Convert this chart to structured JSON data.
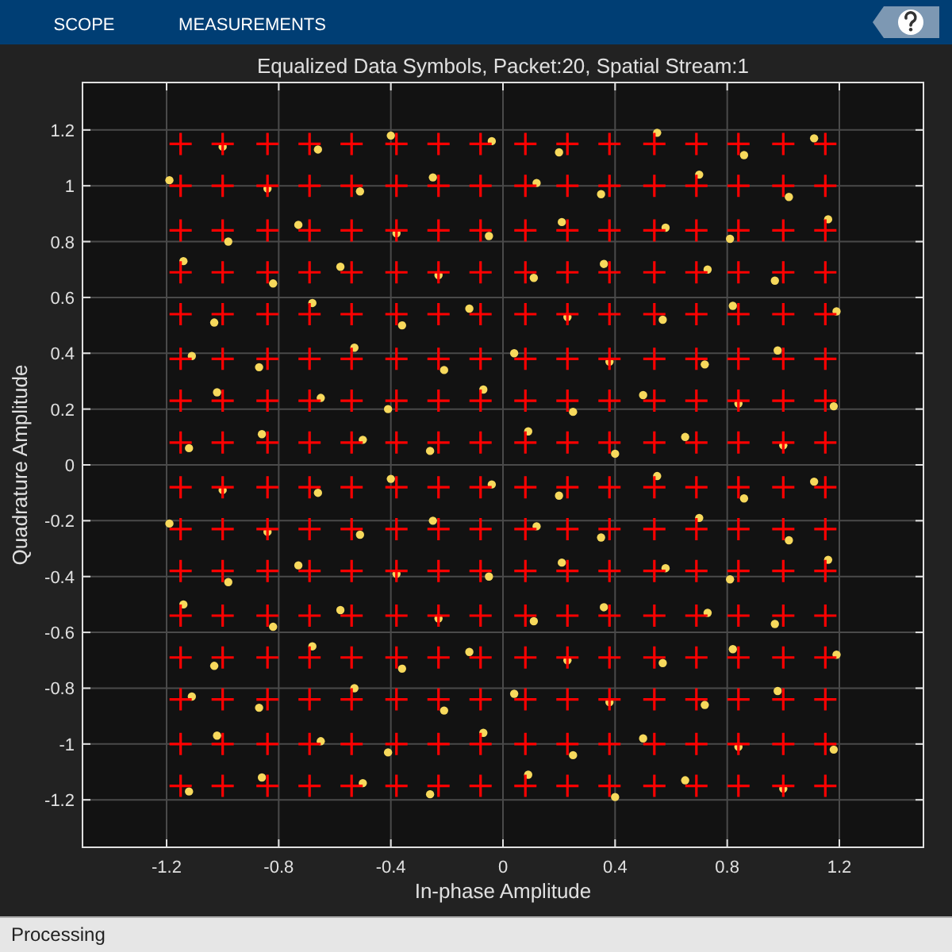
{
  "chart_data": {
    "type": "scatter",
    "title": "Equalized Data Symbols, Packet:20, Spatial Stream:1",
    "xlabel": "In-phase Amplitude",
    "ylabel": "Quadrature Amplitude",
    "xlim": [
      -1.5,
      1.5
    ],
    "ylim": [
      -1.37,
      1.37
    ],
    "xticks": [
      -1.2,
      -0.8,
      -0.4,
      0,
      0.4,
      0.8,
      1.2
    ],
    "yticks": [
      -1.2,
      -1,
      -0.8,
      -0.6,
      -0.4,
      -0.2,
      0,
      0.2,
      0.4,
      0.6,
      0.8,
      1,
      1.2
    ],
    "grid": true,
    "annotations": [
      "SCOPE",
      "MEASUREMENTS",
      "Processing"
    ],
    "series": [
      {
        "color": "#f7d95c",
        "marker": "circle",
        "x": [
          -1.12,
          -0.86,
          -0.5,
          -0.26,
          0.09,
          0.4,
          0.65,
          1.0,
          -1.02,
          -0.65,
          -0.41,
          -0.07,
          0.25,
          0.5,
          0.84,
          1.18,
          -1.11,
          -0.87,
          -0.53,
          -0.21,
          0.04,
          0.38,
          0.72,
          0.98,
          -1.03,
          -0.68,
          -0.36,
          -0.12,
          0.23,
          0.57,
          0.82,
          1.19,
          -1.14,
          -0.82,
          -0.58,
          -0.23,
          0.11,
          0.36,
          0.73,
          0.97,
          -0.98,
          -0.73,
          -0.38,
          -0.05,
          0.21,
          0.58,
          0.81,
          1.16,
          -1.19,
          -0.84,
          -0.51,
          -0.25,
          0.12,
          0.35,
          0.7,
          1.02,
          -1.0,
          -0.66,
          -0.4,
          -0.04,
          0.2,
          0.55,
          0.86,
          1.11,
          -1.12,
          -0.86,
          -0.5,
          -0.26,
          0.09,
          0.4,
          0.65,
          1.0,
          -1.02,
          -0.65,
          -0.41,
          -0.07,
          0.25,
          0.5,
          0.84,
          1.18,
          -1.11,
          -0.87,
          -0.53,
          -0.21,
          0.04,
          0.38,
          0.72,
          0.98,
          -1.03,
          -0.68,
          -0.36,
          -0.12,
          0.23,
          0.57,
          0.82,
          1.19,
          -1.14,
          -0.82,
          -0.58,
          -0.23,
          0.11,
          0.36,
          0.73,
          0.97,
          -0.98,
          -0.73,
          -0.38,
          -0.05,
          0.21,
          0.58,
          0.81,
          1.16,
          -1.19,
          -0.84,
          -0.51,
          -0.25,
          0.12,
          0.35,
          0.7,
          1.02,
          -1.0,
          -0.66,
          -0.4,
          -0.04,
          0.2,
          0.55,
          0.86,
          1.11
        ],
        "values": [
          -1.17,
          -1.12,
          -1.14,
          -1.18,
          -1.11,
          -1.19,
          -1.13,
          -1.16,
          -0.97,
          -0.99,
          -1.03,
          -0.96,
          -1.04,
          -0.98,
          -1.01,
          -1.02,
          -0.83,
          -0.87,
          -0.8,
          -0.88,
          -0.82,
          -0.85,
          -0.86,
          -0.81,
          -0.72,
          -0.65,
          -0.73,
          -0.67,
          -0.7,
          -0.71,
          -0.66,
          -0.68,
          -0.5,
          -0.58,
          -0.52,
          -0.55,
          -0.56,
          -0.51,
          -0.53,
          -0.57,
          -0.42,
          -0.36,
          -0.39,
          -0.4,
          -0.35,
          -0.37,
          -0.41,
          -0.34,
          -0.21,
          -0.24,
          -0.25,
          -0.2,
          -0.22,
          -0.26,
          -0.19,
          -0.27,
          -0.09,
          -0.1,
          -0.05,
          -0.07,
          -0.11,
          -0.04,
          -0.12,
          -0.06,
          0.06,
          0.11,
          0.09,
          0.05,
          0.12,
          0.04,
          0.1,
          0.07,
          0.26,
          0.24,
          0.2,
          0.27,
          0.19,
          0.25,
          0.22,
          0.21,
          0.39,
          0.35,
          0.42,
          0.34,
          0.4,
          0.37,
          0.36,
          0.41,
          0.51,
          0.58,
          0.5,
          0.56,
          0.53,
          0.52,
          0.57,
          0.55,
          0.73,
          0.65,
          0.71,
          0.68,
          0.67,
          0.72,
          0.7,
          0.66,
          0.8,
          0.86,
          0.83,
          0.82,
          0.87,
          0.85,
          0.81,
          0.88,
          1.02,
          0.99,
          0.98,
          1.03,
          1.01,
          0.97,
          1.04,
          0.96,
          1.14,
          1.13,
          1.18,
          1.16,
          1.12,
          1.19,
          1.11,
          1.17
        ]
      },
      {
        "color": "#ff0000",
        "marker": "cross",
        "x": [
          -1.15,
          -1.0,
          -0.84,
          -0.69,
          -0.54,
          -0.38,
          -0.23,
          -0.08,
          0.08,
          0.23,
          0.38,
          0.54,
          0.69,
          0.84,
          1.0,
          1.15,
          -1.15,
          -1.0,
          -0.84,
          -0.69,
          -0.54,
          -0.38,
          -0.23,
          -0.08,
          0.08,
          0.23,
          0.38,
          0.54,
          0.69,
          0.84,
          1.0,
          1.15,
          -1.15,
          -1.0,
          -0.84,
          -0.69,
          -0.54,
          -0.38,
          -0.23,
          -0.08,
          0.08,
          0.23,
          0.38,
          0.54,
          0.69,
          0.84,
          1.0,
          1.15,
          -1.15,
          -1.0,
          -0.84,
          -0.69,
          -0.54,
          -0.38,
          -0.23,
          -0.08,
          0.08,
          0.23,
          0.38,
          0.54,
          0.69,
          0.84,
          1.0,
          1.15,
          -1.15,
          -1.0,
          -0.84,
          -0.69,
          -0.54,
          -0.38,
          -0.23,
          -0.08,
          0.08,
          0.23,
          0.38,
          0.54,
          0.69,
          0.84,
          1.0,
          1.15,
          -1.15,
          -1.0,
          -0.84,
          -0.69,
          -0.54,
          -0.38,
          -0.23,
          -0.08,
          0.08,
          0.23,
          0.38,
          0.54,
          0.69,
          0.84,
          1.0,
          1.15,
          -1.15,
          -1.0,
          -0.84,
          -0.69,
          -0.54,
          -0.38,
          -0.23,
          -0.08,
          0.08,
          0.23,
          0.38,
          0.54,
          0.69,
          0.84,
          1.0,
          1.15,
          -1.15,
          -1.0,
          -0.84,
          -0.69,
          -0.54,
          -0.38,
          -0.23,
          -0.08,
          0.08,
          0.23,
          0.38,
          0.54,
          0.69,
          0.84,
          1.0,
          1.15,
          -1.15,
          -1.0,
          -0.84,
          -0.69,
          -0.54,
          -0.38,
          -0.23,
          -0.08,
          0.08,
          0.23,
          0.38,
          0.54,
          0.69,
          0.84,
          1.0,
          1.15,
          -1.15,
          -1.0,
          -0.84,
          -0.69,
          -0.54,
          -0.38,
          -0.23,
          -0.08,
          0.08,
          0.23,
          0.38,
          0.54,
          0.69,
          0.84,
          1.0,
          1.15,
          -1.15,
          -1.0,
          -0.84,
          -0.69,
          -0.54,
          -0.38,
          -0.23,
          -0.08,
          0.08,
          0.23,
          0.38,
          0.54,
          0.69,
          0.84,
          1.0,
          1.15,
          -1.15,
          -1.0,
          -0.84,
          -0.69,
          -0.54,
          -0.38,
          -0.23,
          -0.08,
          0.08,
          0.23,
          0.38,
          0.54,
          0.69,
          0.84,
          1.0,
          1.15,
          -1.15,
          -1.0,
          -0.84,
          -0.69,
          -0.54,
          -0.38,
          -0.23,
          -0.08,
          0.08,
          0.23,
          0.38,
          0.54,
          0.69,
          0.84,
          1.0,
          1.15,
          -1.15,
          -1.0,
          -0.84,
          -0.69,
          -0.54,
          -0.38,
          -0.23,
          -0.08,
          0.08,
          0.23,
          0.38,
          0.54,
          0.69,
          0.84,
          1.0,
          1.15,
          -1.15,
          -1.0,
          -0.84,
          -0.69,
          -0.54,
          -0.38,
          -0.23,
          -0.08,
          0.08,
          0.23,
          0.38,
          0.54,
          0.69,
          0.84,
          1.0,
          1.15,
          -1.15,
          -1.0,
          -0.84,
          -0.69,
          -0.54,
          -0.38,
          -0.23,
          -0.08,
          0.08,
          0.23,
          0.38,
          0.54,
          0.69,
          0.84,
          1.0,
          1.15
        ],
        "values": [
          -1.15,
          -1.15,
          -1.15,
          -1.15,
          -1.15,
          -1.15,
          -1.15,
          -1.15,
          -1.15,
          -1.15,
          -1.15,
          -1.15,
          -1.15,
          -1.15,
          -1.15,
          -1.15,
          -1.0,
          -1.0,
          -1.0,
          -1.0,
          -1.0,
          -1.0,
          -1.0,
          -1.0,
          -1.0,
          -1.0,
          -1.0,
          -1.0,
          -1.0,
          -1.0,
          -1.0,
          -1.0,
          -0.84,
          -0.84,
          -0.84,
          -0.84,
          -0.84,
          -0.84,
          -0.84,
          -0.84,
          -0.84,
          -0.84,
          -0.84,
          -0.84,
          -0.84,
          -0.84,
          -0.84,
          -0.84,
          -0.69,
          -0.69,
          -0.69,
          -0.69,
          -0.69,
          -0.69,
          -0.69,
          -0.69,
          -0.69,
          -0.69,
          -0.69,
          -0.69,
          -0.69,
          -0.69,
          -0.69,
          -0.69,
          -0.54,
          -0.54,
          -0.54,
          -0.54,
          -0.54,
          -0.54,
          -0.54,
          -0.54,
          -0.54,
          -0.54,
          -0.54,
          -0.54,
          -0.54,
          -0.54,
          -0.54,
          -0.54,
          -0.38,
          -0.38,
          -0.38,
          -0.38,
          -0.38,
          -0.38,
          -0.38,
          -0.38,
          -0.38,
          -0.38,
          -0.38,
          -0.38,
          -0.38,
          -0.38,
          -0.38,
          -0.38,
          -0.23,
          -0.23,
          -0.23,
          -0.23,
          -0.23,
          -0.23,
          -0.23,
          -0.23,
          -0.23,
          -0.23,
          -0.23,
          -0.23,
          -0.23,
          -0.23,
          -0.23,
          -0.23,
          -0.08,
          -0.08,
          -0.08,
          -0.08,
          -0.08,
          -0.08,
          -0.08,
          -0.08,
          -0.08,
          -0.08,
          -0.08,
          -0.08,
          -0.08,
          -0.08,
          -0.08,
          -0.08,
          0.08,
          0.08,
          0.08,
          0.08,
          0.08,
          0.08,
          0.08,
          0.08,
          0.08,
          0.08,
          0.08,
          0.08,
          0.08,
          0.08,
          0.08,
          0.08,
          0.23,
          0.23,
          0.23,
          0.23,
          0.23,
          0.23,
          0.23,
          0.23,
          0.23,
          0.23,
          0.23,
          0.23,
          0.23,
          0.23,
          0.23,
          0.23,
          0.38,
          0.38,
          0.38,
          0.38,
          0.38,
          0.38,
          0.38,
          0.38,
          0.38,
          0.38,
          0.38,
          0.38,
          0.38,
          0.38,
          0.38,
          0.38,
          0.54,
          0.54,
          0.54,
          0.54,
          0.54,
          0.54,
          0.54,
          0.54,
          0.54,
          0.54,
          0.54,
          0.54,
          0.54,
          0.54,
          0.54,
          0.54,
          0.69,
          0.69,
          0.69,
          0.69,
          0.69,
          0.69,
          0.69,
          0.69,
          0.69,
          0.69,
          0.69,
          0.69,
          0.69,
          0.69,
          0.69,
          0.69,
          0.84,
          0.84,
          0.84,
          0.84,
          0.84,
          0.84,
          0.84,
          0.84,
          0.84,
          0.84,
          0.84,
          0.84,
          0.84,
          0.84,
          0.84,
          0.84,
          1.0,
          1.0,
          1.0,
          1.0,
          1.0,
          1.0,
          1.0,
          1.0,
          1.0,
          1.0,
          1.0,
          1.0,
          1.0,
          1.0,
          1.0,
          1.0,
          1.15,
          1.15,
          1.15,
          1.15,
          1.15,
          1.15,
          1.15,
          1.15,
          1.15,
          1.15,
          1.15,
          1.15,
          1.15,
          1.15,
          1.15,
          1.15
        ]
      }
    ]
  }
}
